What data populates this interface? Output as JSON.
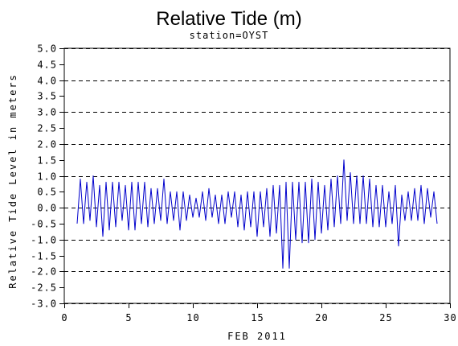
{
  "chart_data": {
    "type": "line",
    "title": "Relative Tide (m)",
    "subtitle": "station=OYST",
    "xlabel": "FEB 2011",
    "ylabel": "Relative Tide Level in meters",
    "xlim": [
      0,
      30
    ],
    "ylim": [
      -3.0,
      5.0
    ],
    "x_ticks": [
      0,
      5,
      10,
      15,
      20,
      25,
      30
    ],
    "y_ticks": [
      -3.0,
      -2.5,
      -2.0,
      -1.5,
      -1.0,
      -0.5,
      0.0,
      0.5,
      1.0,
      1.5,
      2.0,
      2.5,
      3.0,
      3.5,
      4.0,
      4.5,
      5.0
    ],
    "y_tick_labels": [
      "-3.0",
      "-2.5",
      "-2.0",
      "-1.5",
      "-1.0",
      "-0.5",
      "0.0",
      "0.5",
      "1.0",
      "1.5",
      "2.0",
      "2.5",
      "3.0",
      "3.5",
      "4.0",
      "4.5",
      "5.0"
    ],
    "grid_y_at": [
      -3.0,
      -2.0,
      -1.0,
      0.0,
      1.0,
      2.0,
      3.0,
      4.0,
      5.0
    ],
    "grid_style": "dashed",
    "series": [
      {
        "color": "#0000cc",
        "x": [
          1.0,
          1.25,
          1.5,
          1.75,
          2.0,
          2.25,
          2.5,
          2.75,
          3.0,
          3.25,
          3.5,
          3.75,
          4.0,
          4.25,
          4.5,
          4.75,
          5.0,
          5.25,
          5.5,
          5.75,
          6.0,
          6.25,
          6.5,
          6.75,
          7.0,
          7.25,
          7.5,
          7.75,
          8.0,
          8.25,
          8.5,
          8.75,
          9.0,
          9.25,
          9.5,
          9.75,
          10.0,
          10.25,
          10.5,
          10.75,
          11.0,
          11.25,
          11.5,
          11.75,
          12.0,
          12.25,
          12.5,
          12.75,
          13.0,
          13.25,
          13.5,
          13.75,
          14.0,
          14.25,
          14.5,
          14.75,
          15.0,
          15.25,
          15.5,
          15.75,
          16.0,
          16.25,
          16.5,
          16.75,
          17.0,
          17.25,
          17.5,
          17.75,
          18.0,
          18.25,
          18.5,
          18.75,
          19.0,
          19.25,
          19.5,
          19.75,
          20.0,
          20.25,
          20.5,
          20.75,
          21.0,
          21.25,
          21.5,
          21.75,
          22.0,
          22.25,
          22.5,
          22.75,
          23.0,
          23.25,
          23.5,
          23.75,
          24.0,
          24.25,
          24.5,
          24.75,
          25.0,
          25.25,
          25.5,
          25.75,
          26.0,
          26.25,
          26.5,
          26.75,
          27.0,
          27.25,
          27.5,
          27.75,
          28.0,
          28.25,
          28.5,
          28.75,
          29.0
        ],
        "y": [
          -0.5,
          0.9,
          -0.5,
          0.8,
          -0.4,
          1.0,
          -0.6,
          0.7,
          -0.9,
          0.8,
          -0.7,
          0.8,
          -0.6,
          0.8,
          -0.4,
          0.7,
          -0.7,
          0.8,
          -0.7,
          0.8,
          -0.5,
          0.8,
          -0.6,
          0.6,
          -0.5,
          0.6,
          -0.4,
          0.9,
          -0.5,
          0.5,
          -0.4,
          0.5,
          -0.7,
          0.5,
          -0.4,
          0.4,
          -0.3,
          0.3,
          -0.3,
          0.5,
          -0.4,
          0.6,
          -0.3,
          0.4,
          -0.5,
          0.4,
          -0.5,
          0.5,
          -0.3,
          0.5,
          -0.6,
          0.4,
          -0.7,
          0.5,
          -0.6,
          0.5,
          -0.9,
          0.5,
          -0.6,
          0.6,
          -0.9,
          0.7,
          -0.8,
          0.7,
          -1.9,
          0.8,
          -1.9,
          0.8,
          -1.0,
          0.8,
          -1.1,
          0.8,
          -1.1,
          0.9,
          -1.0,
          0.8,
          -0.8,
          0.7,
          -0.7,
          0.9,
          -0.6,
          1.0,
          -0.5,
          1.5,
          -0.4,
          1.1,
          -0.5,
          1.0,
          -0.5,
          1.0,
          -0.5,
          0.9,
          -0.6,
          0.7,
          -0.6,
          0.7,
          -0.6,
          0.5,
          -0.5,
          0.7,
          -1.2,
          0.4,
          -0.4,
          0.5,
          -0.4,
          0.6,
          -0.4,
          0.7,
          -0.5,
          0.6,
          -0.3,
          0.5,
          -0.5
        ]
      }
    ]
  }
}
